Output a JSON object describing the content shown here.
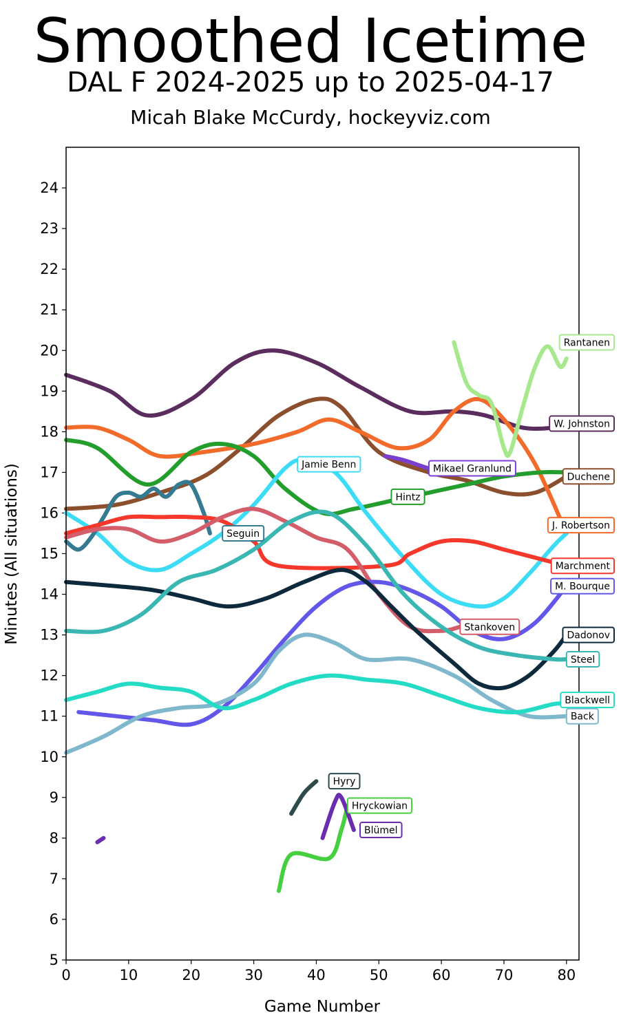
{
  "title": "Smoothed Icetime",
  "subtitle": "DAL F 2024-2025 up to 2025-04-17",
  "credit": "Micah Blake McCurdy, hockeyviz.com",
  "chart_data": {
    "type": "line",
    "title": "Smoothed Icetime",
    "xlabel": "Game Number",
    "ylabel": "Minutes (All situations)",
    "xlim": [
      0,
      82
    ],
    "ylim": [
      5,
      25
    ],
    "xticks": [
      0,
      10,
      20,
      30,
      40,
      50,
      60,
      70,
      80
    ],
    "yticks": [
      5,
      6,
      7,
      8,
      9,
      10,
      11,
      12,
      13,
      14,
      15,
      16,
      17,
      18,
      19,
      20,
      21,
      22,
      23,
      24
    ],
    "series": [
      {
        "name": "W. Johnston",
        "color": "#5b2d5e",
        "label_at": [
          80,
          18.2
        ],
        "x": [
          0,
          7,
          13,
          20,
          27,
          33,
          40,
          47,
          55,
          62,
          67,
          73,
          78,
          80
        ],
        "y": [
          19.4,
          19.0,
          18.4,
          18.8,
          19.7,
          20.0,
          19.7,
          19.1,
          18.5,
          18.5,
          18.4,
          18.1,
          18.1,
          18.2
        ]
      },
      {
        "name": "Duchene",
        "color": "#8b4f2e",
        "label_at": [
          80,
          16.9
        ],
        "x": [
          0,
          8,
          15,
          22,
          28,
          34,
          40,
          44,
          50,
          58,
          64,
          70,
          75,
          80
        ],
        "y": [
          16.1,
          16.2,
          16.5,
          16.9,
          17.6,
          18.4,
          18.8,
          18.6,
          17.5,
          17.0,
          16.8,
          16.5,
          16.5,
          16.9
        ]
      },
      {
        "name": "J. Robertson",
        "color": "#f26b2b",
        "label_at": [
          80,
          15.7
        ],
        "x": [
          0,
          5,
          10,
          15,
          22,
          30,
          37,
          42,
          47,
          53,
          58,
          62,
          66,
          70,
          75,
          80
        ],
        "y": [
          18.1,
          18.1,
          17.8,
          17.4,
          17.5,
          17.7,
          18.0,
          18.3,
          18.0,
          17.6,
          17.8,
          18.5,
          18.8,
          18.3,
          17.2,
          15.5
        ]
      },
      {
        "name": "Rantanen",
        "color": "#a7e88c",
        "label_at": [
          80,
          20.2
        ],
        "x": [
          62,
          64,
          66,
          68,
          70,
          71,
          73,
          75,
          77,
          79,
          80
        ],
        "y": [
          20.2,
          19.2,
          18.9,
          18.7,
          17.6,
          17.5,
          18.6,
          19.6,
          20.1,
          19.6,
          19.8
        ]
      },
      {
        "name": "Mikael Granlund",
        "color": "#7b3fd0",
        "label_at": [
          58,
          17.1
        ],
        "x": [
          51,
          54,
          58,
          60
        ],
        "y": [
          17.4,
          17.3,
          17.1,
          17.1
        ]
      },
      {
        "name": "Hintz",
        "color": "#239d2b",
        "label_at": [
          52,
          16.4
        ],
        "x": [
          0,
          5,
          13,
          20,
          25,
          30,
          35,
          41,
          46,
          52,
          58,
          64,
          70,
          76,
          80
        ],
        "y": [
          17.8,
          17.6,
          16.7,
          17.5,
          17.7,
          17.4,
          16.6,
          16.0,
          16.1,
          16.3,
          16.5,
          16.7,
          16.9,
          17.0,
          17.0
        ]
      },
      {
        "name": "Jamie Benn",
        "color": "#3ddcf6",
        "label_at": [
          37,
          17.2
        ],
        "x": [
          0,
          5,
          10,
          15,
          20,
          25,
          30,
          35,
          38,
          43,
          48,
          54,
          60,
          66,
          70,
          74,
          78,
          80
        ],
        "y": [
          16.0,
          15.5,
          14.8,
          14.6,
          15.0,
          15.5,
          16.2,
          17.1,
          17.3,
          17.0,
          16.0,
          14.9,
          14.0,
          13.7,
          13.9,
          14.5,
          15.2,
          15.5
        ]
      },
      {
        "name": "Seguin",
        "color": "#357a90",
        "label_at": [
          25,
          15.5
        ],
        "x": [
          0,
          2,
          4,
          6,
          8,
          10,
          12,
          14,
          16,
          18,
          20,
          22,
          23
        ],
        "y": [
          15.3,
          15.1,
          15.4,
          15.9,
          16.4,
          16.5,
          16.4,
          16.6,
          16.4,
          16.7,
          16.7,
          16.0,
          15.5
        ]
      },
      {
        "name": "Marchment",
        "color": "#f5382b",
        "label_at": [
          80,
          14.7
        ],
        "x": [
          0,
          5,
          10,
          15,
          20,
          25,
          30,
          34,
          51,
          55,
          60,
          65,
          70,
          75,
          80
        ],
        "y": [
          15.5,
          15.7,
          15.9,
          15.9,
          15.9,
          15.8,
          15.3,
          14.7,
          14.7,
          15.0,
          15.3,
          15.3,
          15.1,
          14.9,
          14.7
        ]
      },
      {
        "name": "Stankoven",
        "color": "#d45d6a",
        "label_at": [
          63,
          13.2
        ],
        "x": [
          0,
          5,
          10,
          15,
          20,
          25,
          30,
          35,
          40,
          45,
          50,
          55,
          60,
          63
        ],
        "y": [
          15.4,
          15.6,
          15.6,
          15.3,
          15.5,
          15.9,
          16.1,
          15.8,
          15.4,
          15.1,
          14.0,
          13.2,
          13.1,
          13.2
        ]
      },
      {
        "name": "M. Bourque",
        "color": "#6257e8",
        "label_at": [
          80,
          14.2
        ],
        "x": [
          2,
          8,
          14,
          20,
          25,
          30,
          35,
          40,
          45,
          50,
          55,
          60,
          65,
          70,
          75,
          80
        ],
        "y": [
          11.1,
          11.0,
          10.9,
          10.8,
          11.2,
          12.0,
          12.9,
          13.7,
          14.2,
          14.3,
          14.1,
          13.7,
          13.1,
          12.9,
          13.3,
          14.2
        ]
      },
      {
        "name": "Dadonov",
        "color": "#0d2a3c",
        "label_at": [
          80,
          13.0
        ],
        "x": [
          0,
          8,
          14,
          20,
          26,
          32,
          38,
          44,
          48,
          52,
          56,
          62,
          66,
          70,
          74,
          78,
          80
        ],
        "y": [
          14.3,
          14.2,
          14.1,
          13.9,
          13.7,
          13.9,
          14.3,
          14.6,
          14.3,
          13.7,
          13.1,
          12.3,
          11.8,
          11.7,
          12.0,
          12.6,
          13.0
        ]
      },
      {
        "name": "Steel",
        "color": "#3bb7b3",
        "label_at": [
          80,
          12.4
        ],
        "x": [
          0,
          6,
          12,
          18,
          24,
          30,
          36,
          42,
          48,
          54,
          60,
          66,
          72,
          78,
          80
        ],
        "y": [
          13.1,
          13.1,
          13.5,
          14.3,
          14.6,
          15.1,
          15.8,
          16.0,
          15.2,
          14.0,
          13.2,
          12.7,
          12.5,
          12.4,
          12.4
        ]
      },
      {
        "name": "Back",
        "color": "#7fb7cc",
        "label_at": [
          80,
          11.0
        ],
        "x": [
          0,
          6,
          12,
          18,
          24,
          30,
          34,
          38,
          43,
          48,
          55,
          62,
          68,
          74,
          80
        ],
        "y": [
          10.1,
          10.5,
          11.0,
          11.2,
          11.3,
          11.8,
          12.6,
          13.0,
          12.8,
          12.4,
          12.4,
          12.0,
          11.4,
          11.0,
          11.0
        ]
      },
      {
        "name": "Blackwell",
        "color": "#24dcc5",
        "label_at": [
          80,
          11.4
        ],
        "x": [
          0,
          5,
          10,
          15,
          20,
          25,
          30,
          36,
          42,
          48,
          54,
          60,
          66,
          72,
          78,
          80
        ],
        "y": [
          11.4,
          11.6,
          11.8,
          11.7,
          11.6,
          11.2,
          11.4,
          11.8,
          12.0,
          11.9,
          11.8,
          11.5,
          11.2,
          11.1,
          11.3,
          11.3
        ]
      },
      {
        "name": "Hyry",
        "color": "#2f4a4a",
        "label_at": [
          42,
          9.4
        ],
        "x": [
          36,
          38,
          40
        ],
        "y": [
          8.6,
          9.1,
          9.4
        ]
      },
      {
        "name": "Hryckowian",
        "color": "#46cf3f",
        "label_at": [
          45,
          8.8
        ],
        "x": [
          34,
          36,
          42,
          44,
          45
        ],
        "y": [
          6.7,
          7.6,
          7.5,
          8.2,
          8.8
        ]
      },
      {
        "name": "Blümel",
        "color": "#6a2db0",
        "label_at": [
          47,
          8.2
        ],
        "x": [
          41,
          43,
          44,
          46
        ],
        "y": [
          8.0,
          8.9,
          9.0,
          8.2
        ]
      },
      {
        "name": "",
        "color": "#6a2db0",
        "x": [
          5,
          6
        ],
        "y": [
          7.9,
          8.0
        ]
      }
    ]
  }
}
